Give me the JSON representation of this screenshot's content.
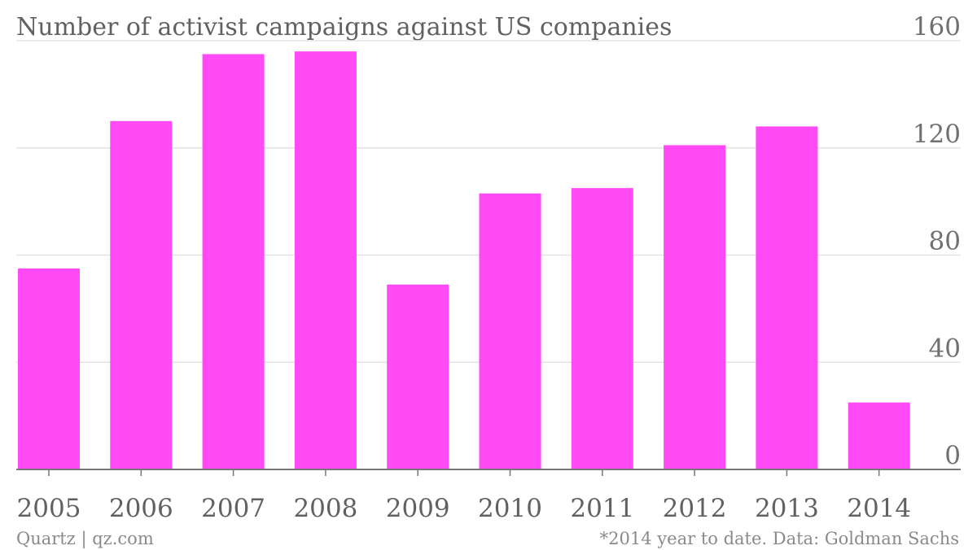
{
  "chart_data": {
    "type": "bar",
    "title": "Number of activist campaigns against US companies",
    "categories": [
      "2005",
      "2006",
      "2007",
      "2008",
      "2009",
      "2010",
      "2011",
      "2012",
      "2013",
      "2014"
    ],
    "values": [
      75,
      130,
      155,
      156,
      69,
      103,
      105,
      121,
      128,
      25
    ],
    "ylim": [
      0,
      160
    ],
    "yticks": [
      "0",
      "40",
      "80",
      "120",
      "160"
    ],
    "y_axis_side": "right",
    "grid": true,
    "bar_color": "#ff4af5",
    "xlabel": "",
    "ylabel": ""
  },
  "footer": {
    "source_left": "Quartz | qz.com",
    "note_right": "*2014 year to date. Data: Goldman Sachs"
  }
}
